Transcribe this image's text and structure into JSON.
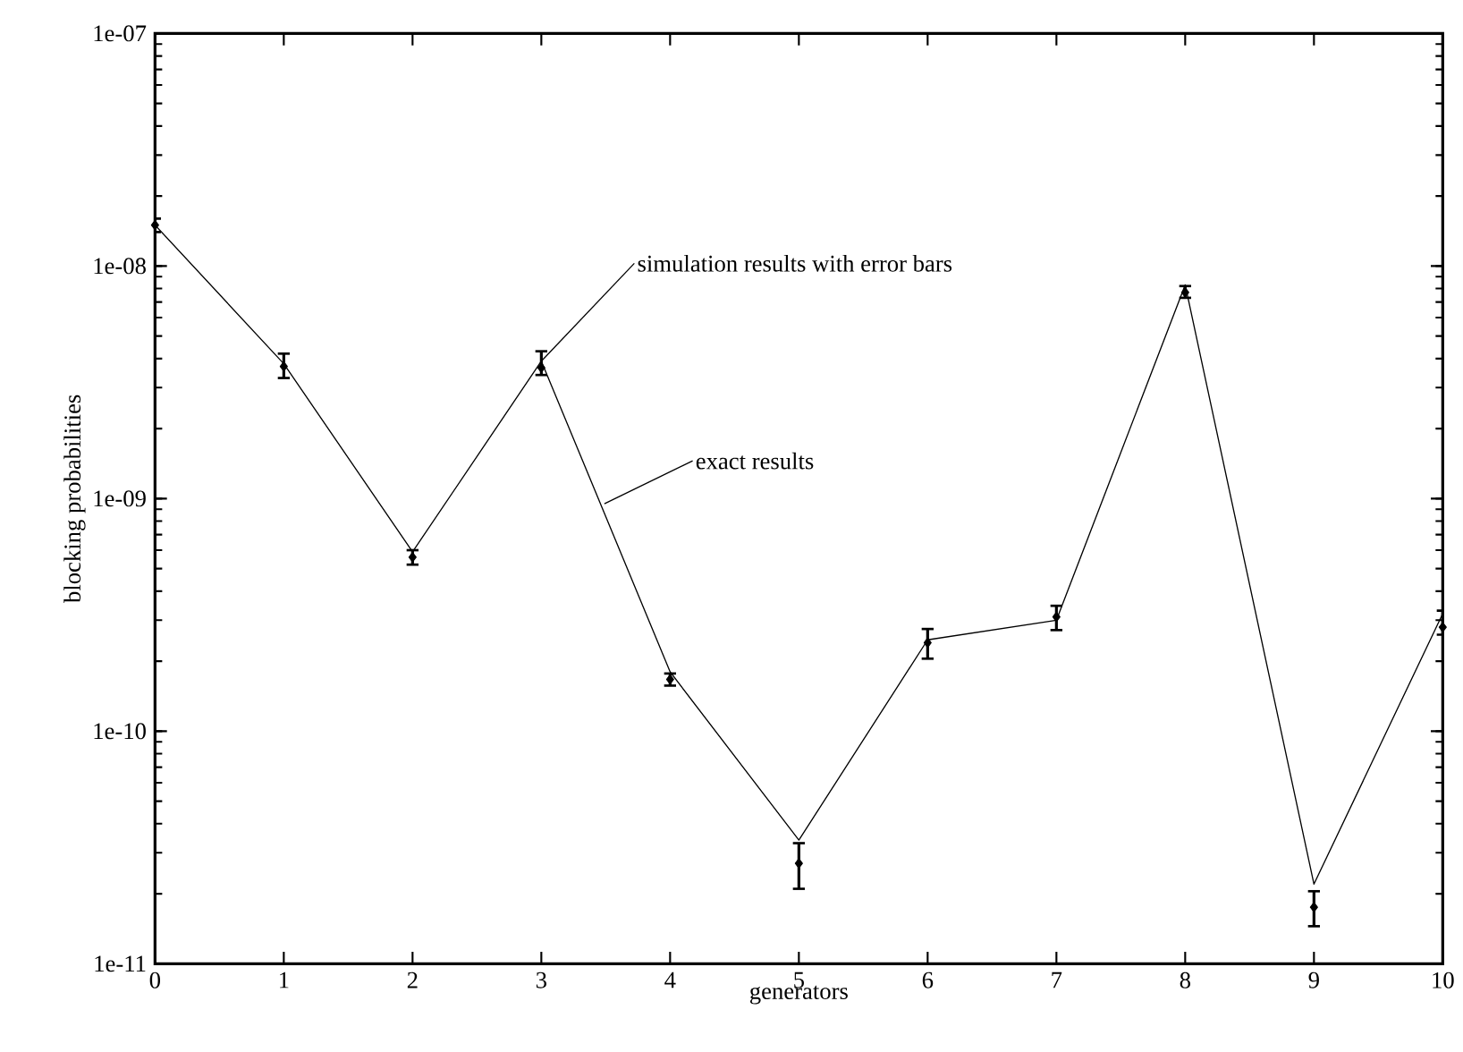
{
  "chart_data": {
    "type": "line",
    "xlabel": "generators",
    "ylabel": "blocking probabilities",
    "x": [
      0,
      1,
      2,
      3,
      4,
      5,
      6,
      7,
      8,
      9,
      10
    ],
    "xlim": [
      0,
      10
    ],
    "xticks": [
      0,
      1,
      2,
      3,
      4,
      5,
      6,
      7,
      8,
      9,
      10
    ],
    "ylim": [
      1e-11,
      1e-07
    ],
    "log": "y",
    "yticks": [
      {
        "value": 1e-11,
        "label": "1e-11"
      },
      {
        "value": 1e-10,
        "label": "1e-10"
      },
      {
        "value": 1e-09,
        "label": "1e-09"
      },
      {
        "value": 1e-08,
        "label": "1e-08"
      },
      {
        "value": 1e-07,
        "label": "1e-07"
      }
    ],
    "annotations": [
      {
        "text": "simulation results with error bars",
        "x": 3,
        "y": 3.9e-09
      },
      {
        "text": "exact results",
        "x": 3.49,
        "y": 9.5e-10
      }
    ],
    "series": [
      {
        "color": "#000000",
        "marker": "none",
        "line_style": "solid",
        "values": [
          1.5e-08,
          3.8e-09,
          5.9e-10,
          3.9e-09,
          1.8e-10,
          3.4e-11,
          2.47e-10,
          3e-10,
          8.3e-09,
          2.2e-11,
          3.2e-10
        ]
      },
      {
        "type": "scatter",
        "color": "#000000",
        "marker": "diamond",
        "values": [
          1.5e-08,
          3.7e-09,
          5.6e-10,
          3.65e-09,
          1.67e-10,
          2.7e-11,
          2.4e-10,
          3.1e-10,
          7.7e-09,
          1.75e-11,
          2.8e-10
        ],
        "errors": [
          [
            1.4e-08,
            1.6e-08
          ],
          [
            3.3e-09,
            4.2e-09
          ],
          [
            5.2e-10,
            6e-10
          ],
          [
            3.4e-09,
            4.3e-09
          ],
          [
            1.57e-10,
            1.77e-10
          ],
          [
            2.1e-11,
            3.3e-11
          ],
          [
            2.05e-10,
            2.75e-10
          ],
          [
            2.72e-10,
            3.46e-10
          ],
          [
            7.3e-09,
            8.2e-09
          ],
          [
            1.45e-11,
            2.05e-11
          ],
          [
            2.6e-10,
            3.3e-10
          ]
        ]
      }
    ]
  }
}
